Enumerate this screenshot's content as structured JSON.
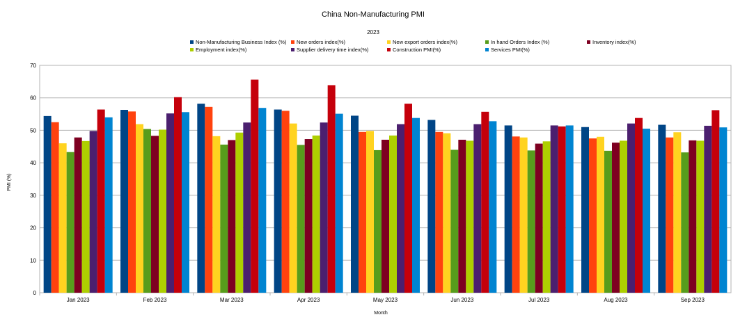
{
  "chart_data": {
    "type": "bar",
    "title": "China Non-Manufacturing PMI",
    "subtitle": "2023",
    "xlabel": "Month",
    "ylabel": "PMI (%)",
    "ylim": [
      0,
      70
    ],
    "yticks": [
      0,
      10,
      20,
      30,
      40,
      50,
      60,
      70
    ],
    "grid": true,
    "legend_position": "top",
    "categories": [
      "Jan 2023",
      "Feb 2023",
      "Mar 2023",
      "Apr 2023",
      "May 2023",
      "Jun 2023",
      "Jul 2023",
      "Aug 2023",
      "Sep 2023"
    ],
    "series": [
      {
        "name": "Non-Manufacturing Business Index (%)",
        "color": "#004586",
        "values": [
          54.4,
          56.3,
          58.2,
          56.4,
          54.5,
          53.2,
          51.5,
          51.0,
          51.7
        ]
      },
      {
        "name": "New orders index(%)",
        "color": "#ff420e",
        "values": [
          52.5,
          55.8,
          57.2,
          56.0,
          49.5,
          49.5,
          48.1,
          47.5,
          47.8
        ]
      },
      {
        "name": "New export orders index(%)",
        "color": "#ffd320",
        "values": [
          46.0,
          51.9,
          48.2,
          52.1,
          49.8,
          49.1,
          47.8,
          48.0,
          49.4
        ]
      },
      {
        "name": "In hand Orders Index (%)",
        "color": "#579d1c",
        "values": [
          43.3,
          50.4,
          45.6,
          45.5,
          43.9,
          44.0,
          43.8,
          43.7,
          43.2
        ]
      },
      {
        "name": "Inventory index(%)",
        "color": "#7e0021",
        "values": [
          47.8,
          48.3,
          47.0,
          47.3,
          47.1,
          47.1,
          45.9,
          46.2,
          46.9
        ]
      },
      {
        "name": "Employment index(%)",
        "color": "#aecf00",
        "values": [
          46.7,
          50.2,
          49.3,
          48.4,
          48.4,
          46.8,
          46.6,
          46.8,
          46.8
        ]
      },
      {
        "name": "Supplier delivery time index(%)",
        "color": "#4b1f6f",
        "values": [
          49.8,
          55.2,
          52.4,
          52.4,
          51.9,
          51.9,
          51.5,
          52.1,
          51.4
        ]
      },
      {
        "name": "Construction PMI(%)",
        "color": "#c5000b",
        "values": [
          56.4,
          60.2,
          65.6,
          63.9,
          58.2,
          55.7,
          51.2,
          53.8,
          56.2
        ]
      },
      {
        "name": "Services PMI(%)",
        "color": "#0084d1",
        "values": [
          54.0,
          55.6,
          56.9,
          55.1,
          53.8,
          52.8,
          51.5,
          50.5,
          50.9
        ]
      }
    ]
  }
}
